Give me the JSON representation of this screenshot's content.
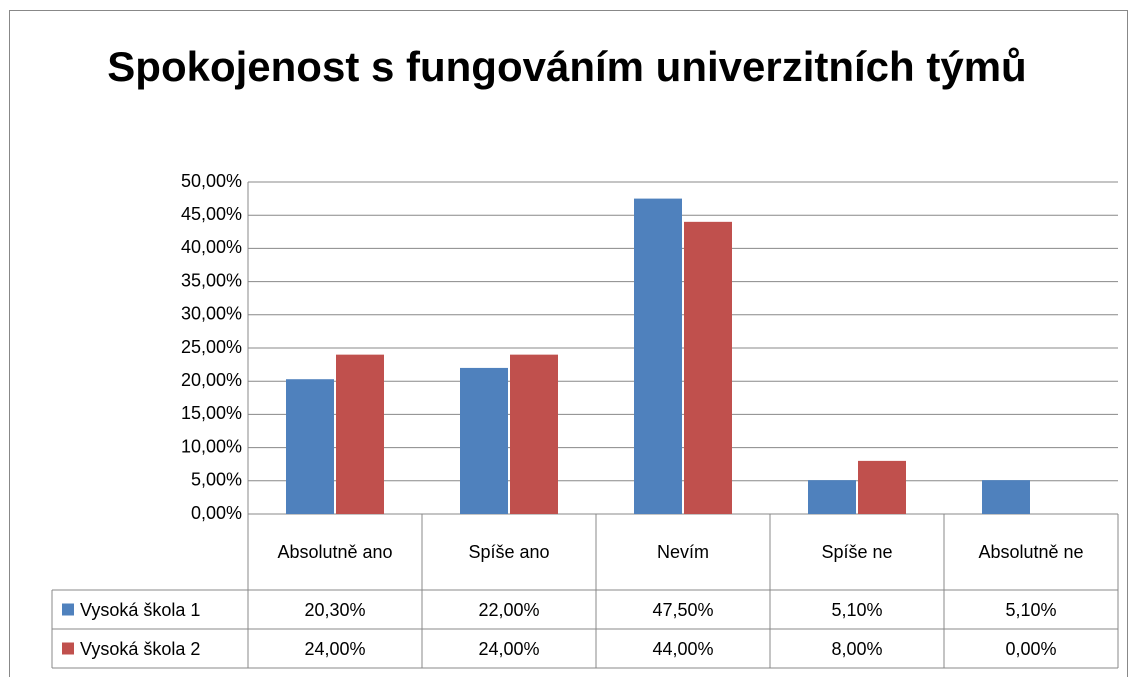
{
  "chart_data": {
    "type": "bar",
    "title": "Spokojenost s fungováním univerzitních týmů",
    "categories": [
      "Absolutně ano",
      "Spíše ano",
      "Nevím",
      "Spíše ne",
      "Absolutně ne"
    ],
    "series": [
      {
        "name": "Vysoká škola 1",
        "color": "#4f81bd",
        "values": [
          20.3,
          22.0,
          47.5,
          5.1,
          5.1
        ],
        "value_labels": [
          "20,30%",
          "22,00%",
          "47,50%",
          "5,10%",
          "5,10%"
        ]
      },
      {
        "name": "Vysoká škola 2",
        "color": "#c0504d",
        "values": [
          24,
          24,
          44,
          8,
          0
        ],
        "value_labels": [
          "24,00%",
          "24,00%",
          "44,00%",
          "8,00%",
          "0,00%"
        ]
      }
    ],
    "ylim": [
      0,
      50
    ],
    "yticks": [
      {
        "value": 0,
        "label": "0,00%"
      },
      {
        "value": 5,
        "label": "5,00%"
      },
      {
        "value": 10,
        "label": "10,00%"
      },
      {
        "value": 15,
        "label": "15,00%"
      },
      {
        "value": 20,
        "label": "20,00%"
      },
      {
        "value": 25,
        "label": "25,00%"
      },
      {
        "value": 30,
        "label": "30,00%"
      },
      {
        "value": 35,
        "label": "35,00%"
      },
      {
        "value": 40,
        "label": "40,00%"
      },
      {
        "value": 45,
        "label": "45,00%"
      },
      {
        "value": 50,
        "label": "50,00%"
      }
    ],
    "grid": true
  }
}
